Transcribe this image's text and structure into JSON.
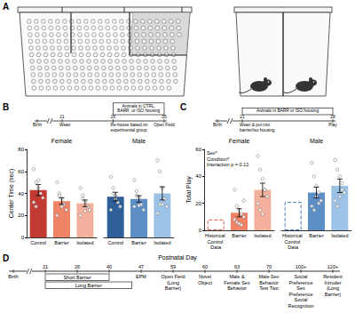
{
  "panel_a": {
    "panel": "A"
  },
  "chart_data": [
    {
      "type": "bar",
      "panel": "B",
      "y_label": "Center Time (sec)",
      "ylim": [
        0,
        80
      ],
      "yticks": [
        0,
        20,
        40,
        60,
        80
      ],
      "grid": false,
      "inset": {
        "points": [
          {
            "label": "Birth"
          },
          {
            "day": 21,
            "label": "Wean"
          },
          {
            "day": 26,
            "label": "Re-house based on experimental group"
          },
          {
            "day": 35,
            "label": "Open Field"
          }
        ],
        "periods": [
          {
            "label": "Animals in CTRL, BARR, or ISO housing",
            "start": 26,
            "end": 35
          }
        ]
      },
      "groups": [
        {
          "name": "Female",
          "categories": [
            "Control",
            "Barrier",
            "Isolated"
          ],
          "values": [
            43,
            33,
            31
          ],
          "errors": [
            5,
            3,
            3
          ],
          "colors": [
            "#c23b32",
            "#ee8366",
            "#f3b09c"
          ],
          "points": [
            [
              62,
              50,
              45,
              40,
              36,
              32,
              28,
              52
            ],
            [
              50,
              40,
              35,
              30,
              25,
              20,
              38,
              28,
              30
            ],
            [
              45,
              38,
              32,
              28,
              25,
              20,
              35,
              24
            ]
          ]
        },
        {
          "name": "Male",
          "categories": [
            "Control",
            "Barrier",
            "Isolated"
          ],
          "values": [
            37,
            35,
            40
          ],
          "errors": [
            4,
            3,
            6
          ],
          "colors": [
            "#2e5f99",
            "#5d8fc7",
            "#9cc3e6"
          ],
          "points": [
            [
              55,
              45,
              38,
              32,
              28,
              25,
              40,
              35
            ],
            [
              52,
              42,
              36,
              30,
              25,
              28,
              38,
              29
            ],
            [
              70,
              60,
              45,
              35,
              28,
              22,
              30,
              30
            ]
          ]
        }
      ]
    },
    {
      "type": "bar",
      "panel": "C",
      "y_label": "Total Play",
      "ylim": [
        0,
        60
      ],
      "yticks": [
        0,
        20,
        40,
        60
      ],
      "grid": false,
      "annotations": [
        "Sex*",
        "Condition*",
        "Interaction p = 0.12"
      ],
      "inset": {
        "points": [
          {
            "label": "Birth"
          },
          {
            "day": 21,
            "label": "Wean & put into barrier/iso housing"
          },
          {
            "day": 28,
            "label": "Play"
          }
        ],
        "periods": [
          {
            "label": "Animals in BARR or ISO housing",
            "start": 21,
            "end": 28
          }
        ]
      },
      "groups": [
        {
          "name": "Female",
          "categories": [
            "Historical Control Data",
            "Barrier",
            "Isolated"
          ],
          "values": [
            8,
            13,
            30
          ],
          "errors": [
            null,
            3,
            5
          ],
          "colors": [
            "#e0604e",
            "#ee8366",
            "#f3b09c"
          ],
          "line_styles": [
            "dashed",
            "solid",
            "solid"
          ],
          "points": [
            [],
            [
              30,
              18,
              15,
              12,
              10,
              8,
              6,
              5,
              4,
              22
            ],
            [
              55,
              45,
              38,
              30,
              25,
              20,
              15,
              12,
              30
            ]
          ]
        },
        {
          "name": "Male",
          "categories": [
            "Historical Control Data",
            "Barrier",
            "Isolated"
          ],
          "values": [
            21,
            28,
            33
          ],
          "errors": [
            null,
            4,
            5
          ],
          "colors": [
            "#4a7db8",
            "#5d8fc7",
            "#9cc3e6"
          ],
          "line_styles": [
            "dashed",
            "solid",
            "solid"
          ],
          "points": [
            [],
            [
              50,
              40,
              33,
              28,
              22,
              18,
              15,
              25,
              20
            ],
            [
              52,
              45,
              40,
              35,
              28,
              22,
              18,
              25,
              30
            ]
          ]
        }
      ]
    }
  ],
  "timeline": {
    "panel": "D",
    "title": "Postnatal Day",
    "points": [
      {
        "label": "Birth"
      },
      {
        "day": 21
      },
      {
        "day": 26
      },
      {
        "day": 40
      },
      {
        "day": 47,
        "label": "EPM"
      },
      {
        "day": 59,
        "label": "Open Field (Long Barrier)"
      },
      {
        "day": 60,
        "label": "Novel Object"
      },
      {
        "day": 63,
        "label": "Male & Female Sex Behavior"
      },
      {
        "day": 70,
        "label": "Male Sex Behavior Test Two"
      },
      {
        "day": {
          "value": 100,
          "label": "100+"
        },
        "label": "Social Preference Sex Preference Social Recognition"
      },
      {
        "day": {
          "value": 120,
          "label": "120+"
        },
        "label": "Resident Intruder (Long Barrier)"
      }
    ],
    "periods": [
      {
        "label": "Short Barrier",
        "start": 21,
        "end": 40
      },
      {
        "label": "Long Barrier",
        "start": 21,
        "end": 45
      }
    ]
  }
}
